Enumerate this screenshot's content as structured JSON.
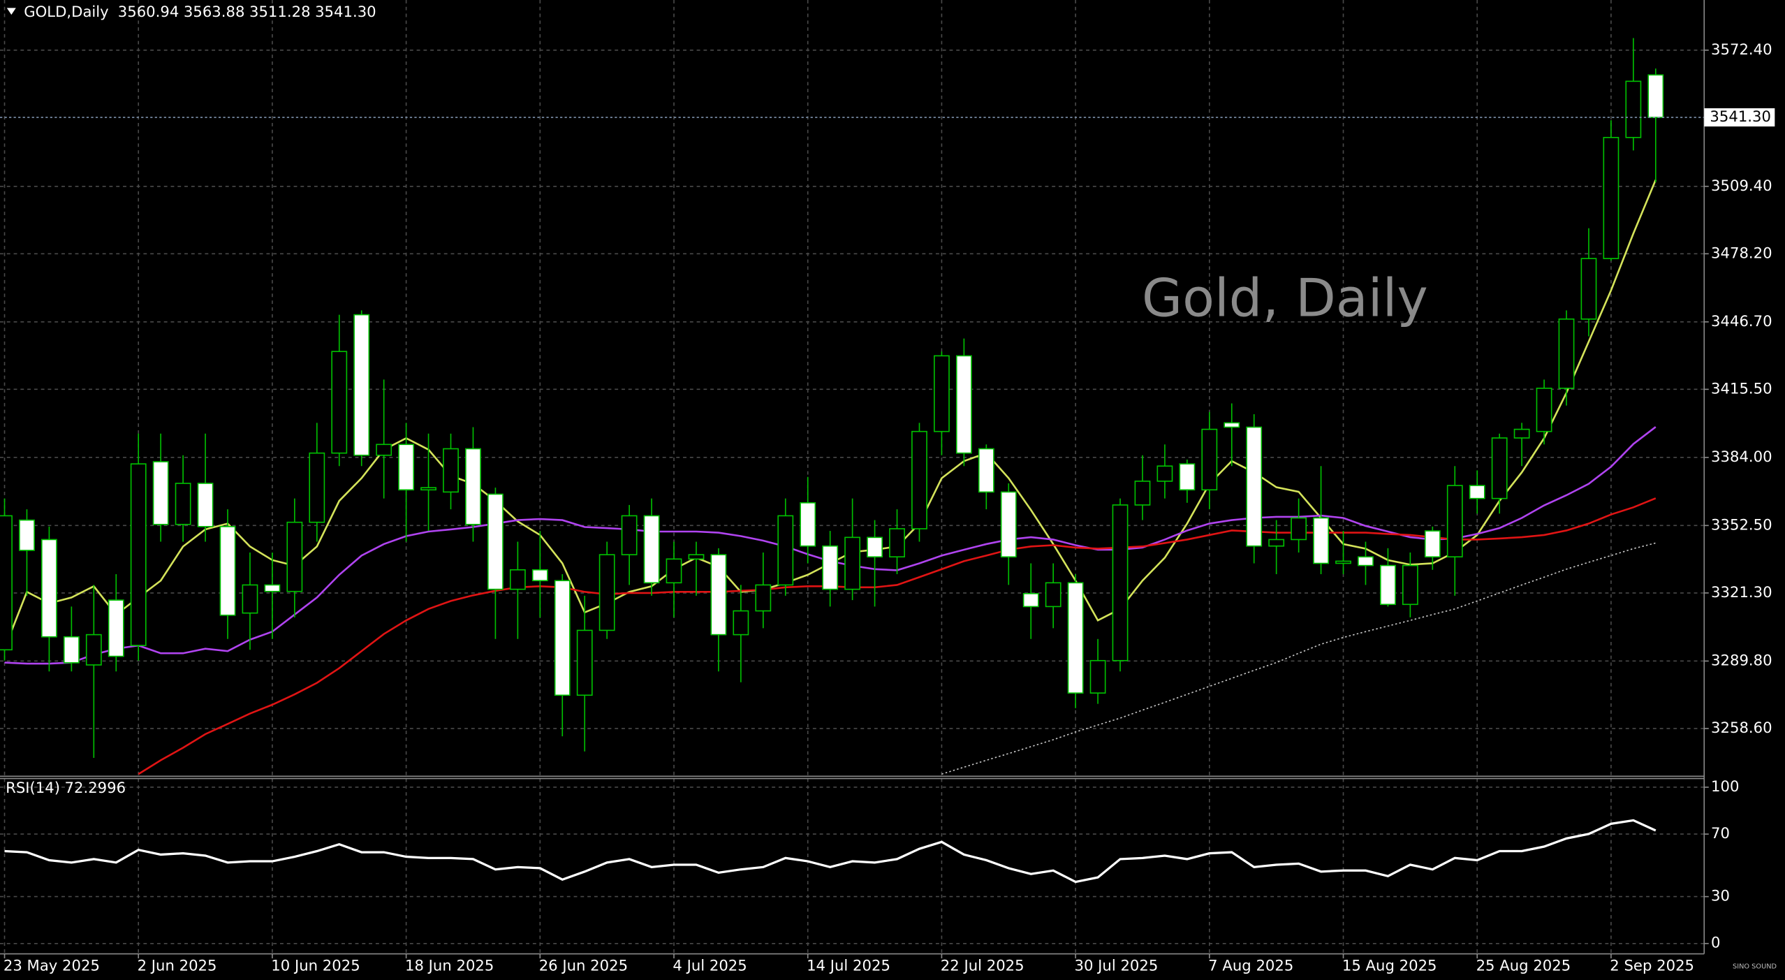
{
  "chart_data": {
    "type": "candlestick",
    "symbol": "GOLD,Daily",
    "watermark": "Gold, Daily",
    "logo": "SINO SOUND",
    "categories": [
      "23 May 2025",
      null,
      null,
      null,
      null,
      null,
      "2 Jun 2025",
      null,
      null,
      null,
      null,
      null,
      "10 Jun 2025",
      null,
      null,
      null,
      null,
      null,
      "18 Jun 2025",
      null,
      null,
      null,
      null,
      null,
      "26 Jun 2025",
      null,
      null,
      null,
      null,
      null,
      "4 Jul 2025",
      null,
      null,
      null,
      null,
      null,
      "14 Jul 2025",
      null,
      null,
      null,
      null,
      null,
      "22 Jul 2025",
      null,
      null,
      null,
      null,
      null,
      "30 Jul 2025",
      null,
      null,
      null,
      null,
      null,
      "7 Aug 2025",
      null,
      null,
      null,
      null,
      null,
      "15 Aug 2025",
      null,
      null,
      null,
      null,
      null,
      "25 Aug 2025",
      null,
      null,
      null,
      null,
      null,
      "2 Sep 2025",
      null,
      null
    ],
    "open": [
      3295,
      3355,
      3346,
      3301,
      3288,
      3318,
      3297,
      3382,
      3353,
      3372,
      3352,
      3312,
      3325,
      3322,
      3354,
      3386,
      3450,
      3385,
      3390,
      3369,
      3368,
      3388,
      3367,
      3323,
      3332,
      3327,
      3274,
      3304,
      3339,
      3357,
      3326,
      3337,
      3339,
      3302,
      3313,
      3325,
      3363,
      3343,
      3323,
      3347,
      3338,
      3351,
      3396,
      3431,
      3388,
      3368,
      3321,
      3315,
      3326,
      3275,
      3290,
      3362,
      3373,
      3381,
      3369,
      3400,
      3398,
      3343,
      3346,
      3356,
      3335,
      3338,
      3334,
      3316,
      3350,
      3338,
      3371,
      3365,
      3393,
      3396,
      3416,
      3448,
      3476,
      3532,
      3560.94
    ],
    "high": [
      3365,
      3360,
      3352,
      3315,
      3325,
      3330,
      3395,
      3395,
      3385,
      3395,
      3360,
      3340,
      3340,
      3365,
      3400,
      3450,
      3452,
      3420,
      3400,
      3395,
      3395,
      3398,
      3370,
      3345,
      3350,
      3330,
      3320,
      3345,
      3362,
      3365,
      3345,
      3345,
      3342,
      3325,
      3340,
      3365,
      3375,
      3350,
      3365,
      3355,
      3360,
      3400,
      3433,
      3439,
      3390,
      3372,
      3335,
      3335,
      3330,
      3300,
      3365,
      3385,
      3390,
      3383,
      3405,
      3409,
      3404,
      3355,
      3365,
      3380,
      3350,
      3345,
      3342,
      3340,
      3352,
      3380,
      3378,
      3395,
      3400,
      3420,
      3452,
      3490,
      3540,
      3578,
      3563.88
    ],
    "low": [
      3290,
      3320,
      3285,
      3285,
      3245,
      3285,
      3290,
      3345,
      3345,
      3345,
      3300,
      3295,
      3300,
      3310,
      3345,
      3380,
      3380,
      3365,
      3345,
      3350,
      3360,
      3345,
      3300,
      3300,
      3310,
      3255,
      3248,
      3300,
      3325,
      3320,
      3310,
      3320,
      3285,
      3280,
      3305,
      3320,
      3335,
      3315,
      3318,
      3315,
      3330,
      3345,
      3385,
      3380,
      3360,
      3325,
      3300,
      3305,
      3268,
      3270,
      3285,
      3355,
      3365,
      3363,
      3360,
      3380,
      3335,
      3330,
      3340,
      3330,
      3330,
      3325,
      3315,
      3310,
      3332,
      3320,
      3358,
      3358,
      3380,
      3390,
      3408,
      3440,
      3475,
      3526,
      3511.28
    ],
    "close": [
      3357,
      3341,
      3301,
      3289,
      3302,
      3292,
      3381,
      3353,
      3372,
      3352,
      3311,
      3325,
      3322,
      3354,
      3386,
      3433,
      3385,
      3390,
      3369,
      3370,
      3388,
      3353,
      3323,
      3332,
      3327,
      3274,
      3304,
      3339,
      3357,
      3326,
      3337,
      3339,
      3302,
      3313,
      3325,
      3357,
      3343,
      3323,
      3347,
      3338,
      3351,
      3396,
      3431,
      3386,
      3368,
      3338,
      3315,
      3326,
      3275,
      3290,
      3362,
      3373,
      3380,
      3369,
      3397,
      3398,
      3343,
      3346,
      3356,
      3335,
      3336,
      3334,
      3316,
      3334,
      3338,
      3371,
      3365,
      3393,
      3397,
      3416,
      3448,
      3476,
      3532,
      3558,
      3541.3
    ],
    "up_color": "#000000",
    "down_color": "#ffffff",
    "wick_color": "#00c000",
    "lines": [
      {
        "color": "#d4e35a",
        "style": "solid",
        "values": [
          3295.5,
          3321.8,
          3316.5,
          3319.2,
          3324.4,
          3311.3,
          3319.2,
          3327.0,
          3342.8,
          3350.7,
          3353.4,
          3342.8,
          3336.5,
          3333.9,
          3342.8,
          3363.9,
          3374.4,
          3387.6,
          3392.9,
          3387.6,
          3375.5,
          3371.8,
          3363.9,
          3354.4,
          3348.1,
          3335.0,
          3312.3,
          3316.5,
          3321.8,
          3324.4,
          3332.3,
          3337.6,
          3333.4,
          3321.8,
          3322.8,
          3326.0,
          3329.7,
          3335.0,
          3340.2,
          3341.3,
          3342.8,
          3353.4,
          3374.4,
          3382.3,
          3386.0,
          3374.4,
          3359.7,
          3343.9,
          3327.0,
          3308.6,
          3313.9,
          3327.0,
          3337.6,
          3353.4,
          3371.8,
          3382.3,
          3377.1,
          3370.2,
          3368.1,
          3356.0,
          3343.9,
          3341.8,
          3336.5,
          3334.4,
          3335.0,
          3340.2,
          3348.1,
          3363.9,
          3377.1,
          3392.9,
          3413.9,
          3437.6,
          3461.3,
          3487.6,
          3512.4
        ]
      },
      {
        "color": "#b044f0",
        "style": "solid",
        "values": [
          3289.1,
          3288.6,
          3288.6,
          3289.1,
          3292.8,
          3295.5,
          3297.0,
          3293.4,
          3293.4,
          3295.5,
          3294.4,
          3299.7,
          3303.4,
          3311.3,
          3319.2,
          3329.7,
          3338.6,
          3343.9,
          3347.6,
          3349.7,
          3350.7,
          3351.8,
          3353.4,
          3355.0,
          3355.5,
          3355.0,
          3351.8,
          3351.3,
          3350.7,
          3349.7,
          3349.7,
          3349.7,
          3349.2,
          3347.6,
          3345.5,
          3342.8,
          3339.2,
          3336.0,
          3333.9,
          3332.3,
          3331.8,
          3335.0,
          3338.6,
          3341.3,
          3343.9,
          3346.0,
          3347.1,
          3346.0,
          3343.4,
          3341.3,
          3341.3,
          3342.3,
          3346.0,
          3350.2,
          3353.4,
          3355.0,
          3356.0,
          3356.5,
          3356.5,
          3357.1,
          3356.0,
          3352.3,
          3349.7,
          3347.1,
          3346.0,
          3346.5,
          3348.6,
          3351.3,
          3356.0,
          3361.8,
          3366.5,
          3371.8,
          3379.7,
          3390.2,
          3398.1
        ]
      },
      {
        "color": "#e01414",
        "style": "solid",
        "values": [
          null,
          null,
          null,
          null,
          null,
          null,
          3237.5,
          3243.9,
          3249.7,
          3256.0,
          3260.7,
          3265.5,
          3269.6,
          3274.4,
          3279.7,
          3286.5,
          3294.4,
          3302.3,
          3308.6,
          3313.9,
          3317.6,
          3320.2,
          3322.3,
          3323.9,
          3324.4,
          3323.9,
          3321.8,
          3320.7,
          3321.3,
          3321.3,
          3321.8,
          3321.8,
          3321.8,
          3322.3,
          3322.8,
          3323.9,
          3324.4,
          3324.4,
          3323.9,
          3323.9,
          3325.0,
          3328.6,
          3332.3,
          3336.0,
          3338.6,
          3341.3,
          3342.8,
          3343.4,
          3342.3,
          3341.8,
          3342.3,
          3342.8,
          3344.4,
          3346.0,
          3348.1,
          3350.2,
          3349.7,
          3349.2,
          3349.2,
          3349.2,
          3349.2,
          3349.2,
          3348.6,
          3348.1,
          3347.1,
          3346.0,
          3346.0,
          3346.5,
          3347.1,
          3348.1,
          3350.2,
          3353.4,
          3357.6,
          3360.9,
          3365.1
        ]
      },
      {
        "color": "#c8c8c8",
        "style": "dotted",
        "values": [
          null,
          null,
          null,
          null,
          null,
          null,
          null,
          null,
          null,
          null,
          null,
          null,
          null,
          null,
          null,
          null,
          null,
          null,
          null,
          null,
          null,
          null,
          null,
          null,
          null,
          null,
          null,
          null,
          null,
          null,
          null,
          null,
          null,
          null,
          null,
          null,
          null,
          null,
          null,
          null,
          null,
          null,
          3237.5,
          3240.7,
          3243.9,
          3247.0,
          3250.2,
          3253.4,
          3257.0,
          3260.2,
          3263.4,
          3267.1,
          3270.7,
          3274.4,
          3278.1,
          3281.8,
          3285.5,
          3289.1,
          3293.4,
          3297.6,
          3300.7,
          3303.4,
          3306.0,
          3308.6,
          3311.3,
          3313.9,
          3317.6,
          3321.3,
          3325.0,
          3328.6,
          3332.3,
          3335.5,
          3338.6,
          3341.8,
          3344.4
        ]
      }
    ],
    "current_price": {
      "value": 3541.3,
      "label": "3541.30"
    },
    "ylim": [
      3236.5,
      3595.6
    ],
    "yticks": [
      {
        "value": 3572.4,
        "label": "3572.40"
      },
      {
        "value": 3509.4,
        "label": "3509.40"
      },
      {
        "value": 3478.2,
        "label": "3478.20"
      },
      {
        "value": 3446.7,
        "label": "3446.70"
      },
      {
        "value": 3415.5,
        "label": "3415.50"
      },
      {
        "value": 3384,
        "label": "3384.00"
      },
      {
        "value": 3352.5,
        "label": "3352.50"
      },
      {
        "value": 3321.3,
        "label": "3321.30"
      },
      {
        "value": 3289.8,
        "label": "3289.80"
      },
      {
        "value": 3258.6,
        "label": "3258.60"
      }
    ],
    "grid": true,
    "rsi": {
      "title": "RSI(14)",
      "color": "#ffffff",
      "values": [
        59.1,
        58.4,
        53.3,
        51.8,
        54.0,
        51.8,
        59.9,
        56.9,
        57.7,
        56.2,
        51.8,
        52.6,
        52.6,
        55.5,
        59.1,
        63.5,
        58.4,
        58.4,
        55.5,
        54.7,
        54.7,
        54.0,
        47.4,
        48.9,
        48.2,
        40.9,
        46.0,
        51.8,
        54.0,
        48.9,
        50.4,
        50.4,
        45.3,
        47.4,
        48.9,
        54.7,
        52.6,
        48.9,
        52.6,
        51.8,
        54.0,
        60.6,
        65.0,
        56.9,
        53.3,
        48.2,
        44.5,
        46.7,
        39.4,
        42.3,
        54.0,
        54.7,
        56.2,
        54.0,
        57.7,
        58.4,
        48.9,
        50.4,
        51.1,
        46.0,
        46.7,
        46.7,
        43.1,
        50.4,
        47.4,
        54.7,
        53.3,
        59.1,
        59.1,
        62.0,
        67.2,
        70.1,
        76.6,
        78.8,
        72.2996
      ],
      "ylim": [
        -6.6,
        107
      ],
      "yticks": [
        100,
        70,
        30,
        0
      ]
    }
  }
}
